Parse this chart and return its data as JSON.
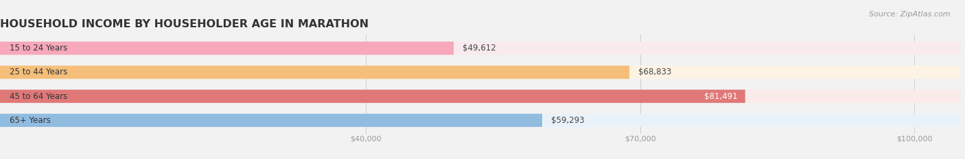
{
  "title": "HOUSEHOLD INCOME BY HOUSEHOLDER AGE IN MARATHON",
  "source": "Source: ZipAtlas.com",
  "categories": [
    "15 to 24 Years",
    "25 to 44 Years",
    "45 to 64 Years",
    "65+ Years"
  ],
  "values": [
    49612,
    68833,
    81491,
    59293
  ],
  "bar_colors": [
    "#f7a8bb",
    "#f5bf7a",
    "#e07878",
    "#90bce0"
  ],
  "bar_bg_colors": [
    "#f9eaed",
    "#fdf3e5",
    "#faeaea",
    "#eaf2f9"
  ],
  "label_colors": [
    "#444444",
    "#444444",
    "#ffffff",
    "#444444"
  ],
  "value_labels": [
    "$49,612",
    "$68,833",
    "$81,491",
    "$59,293"
  ],
  "xlim": [
    0,
    105000
  ],
  "xticks": [
    40000,
    70000,
    100000
  ],
  "xtick_labels": [
    "$40,000",
    "$70,000",
    "$100,000"
  ],
  "background_color": "#f2f2f2",
  "title_fontsize": 11.5,
  "label_fontsize": 8.5,
  "value_fontsize": 8.5,
  "source_fontsize": 8
}
